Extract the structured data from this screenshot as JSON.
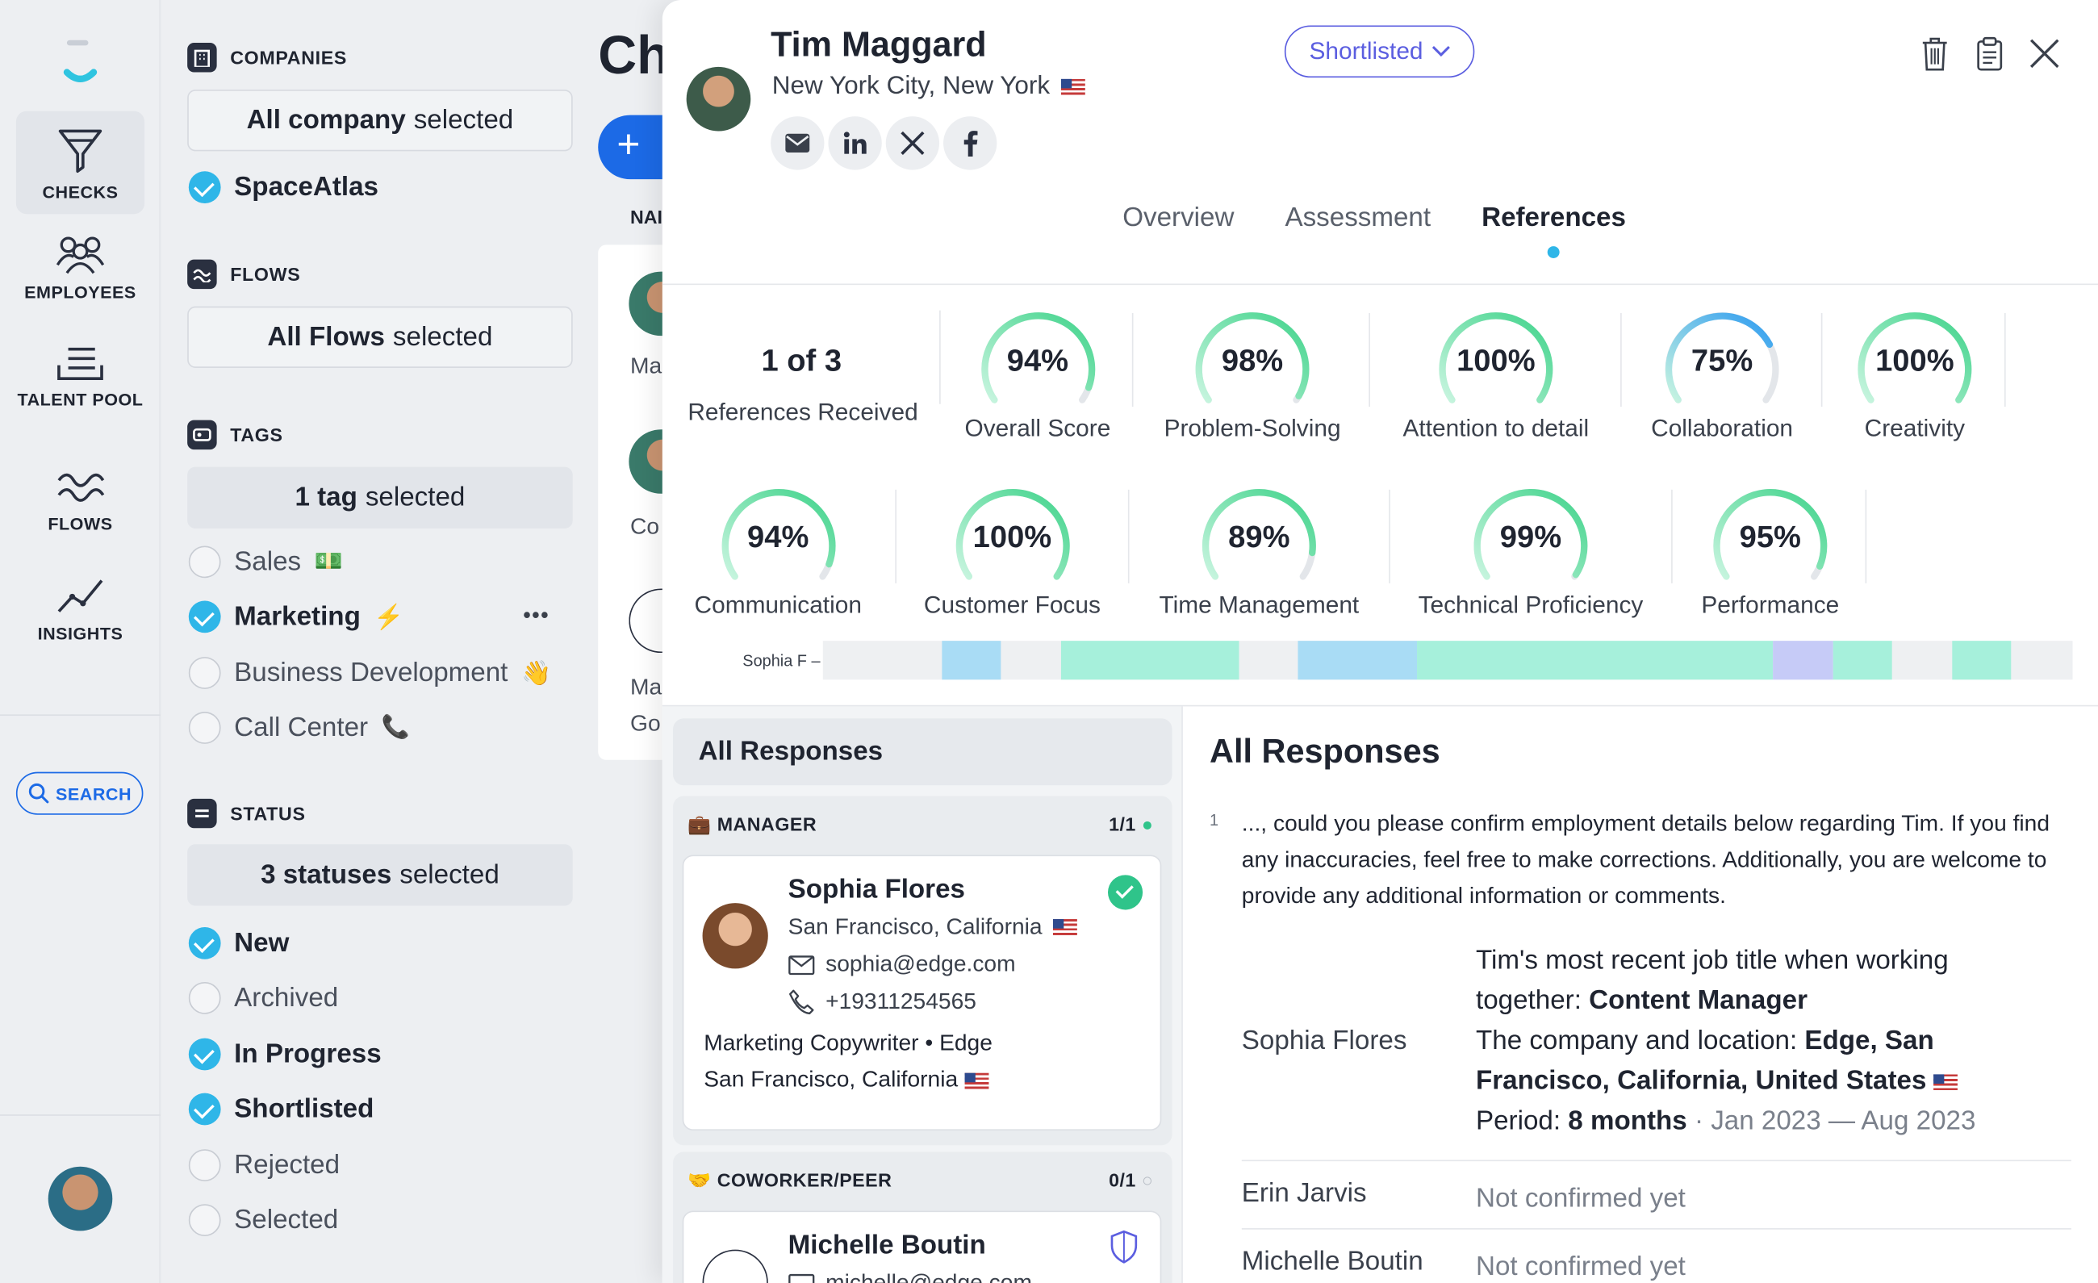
{
  "nav": {
    "items": [
      {
        "label": "CHECKS",
        "icon": "funnel-icon"
      },
      {
        "label": "EMPLOYEES",
        "icon": "people-icon"
      },
      {
        "label": "TALENT POOL",
        "icon": "inbox-list-icon"
      },
      {
        "label": "FLOWS",
        "icon": "waves-icon"
      },
      {
        "label": "INSIGHTS",
        "icon": "trend-icon"
      }
    ],
    "search_label": "SEARCH"
  },
  "filters": {
    "companies": {
      "title": "COMPANIES",
      "box_bold": "All company",
      "box_rest": "selected",
      "items": [
        "SpaceAtlas"
      ]
    },
    "flows": {
      "title": "FLOWS",
      "box_bold": "All Flows",
      "box_rest": "selected"
    },
    "tags": {
      "title": "TAGS",
      "box_bold": "1 tag",
      "box_rest": "selected",
      "items": [
        {
          "label": "Sales",
          "emoji": "💵",
          "checked": false
        },
        {
          "label": "Marketing",
          "emoji": "⚡",
          "checked": true
        },
        {
          "label": "Business Development",
          "emoji": "👋",
          "checked": false
        },
        {
          "label": "Call Center",
          "emoji": "📞",
          "checked": false
        }
      ],
      "more": "•••"
    },
    "status": {
      "title": "STATUS",
      "box_bold": "3 statuses",
      "box_rest": "selected",
      "items": [
        {
          "label": "New",
          "checked": true
        },
        {
          "label": "Archived",
          "checked": false
        },
        {
          "label": "In Progress",
          "checked": true
        },
        {
          "label": "Shortlisted",
          "checked": true
        },
        {
          "label": "Rejected",
          "checked": false
        },
        {
          "label": "Selected",
          "checked": false
        }
      ]
    }
  },
  "background": {
    "title": "Ch",
    "plus": "+",
    "col_header": "NAI",
    "rows": [
      "Ma",
      "Co",
      "Ma",
      "Go"
    ]
  },
  "candidate": {
    "name": "Tim Maggard",
    "location": "New York City, New York",
    "status": "Shortlisted",
    "tabs": [
      "Overview",
      "Assessment",
      "References"
    ],
    "active_tab": "References"
  },
  "references": {
    "count": "1 of 3",
    "count_label": "References Received",
    "row1": [
      {
        "value": "94%",
        "label": "Overall Score",
        "pct": 94,
        "color": "#3fd38a"
      },
      {
        "value": "98%",
        "label": "Problem-Solving",
        "pct": 98,
        "color": "#3fd38a"
      },
      {
        "value": "100%",
        "label": "Attention to detail",
        "pct": 100,
        "color": "#3fd38a"
      },
      {
        "value": "75%",
        "label": "Collaboration",
        "pct": 75,
        "color": "#2f9cf0"
      },
      {
        "value": "100%",
        "label": "Creativity",
        "pct": 100,
        "color": "#3fd38a"
      }
    ],
    "row2": [
      {
        "value": "94%",
        "label": "Communication",
        "pct": 94,
        "color": "#3fd38a"
      },
      {
        "value": "100%",
        "label": "Customer Focus",
        "pct": 100,
        "color": "#3fd38a"
      },
      {
        "value": "89%",
        "label": "Time Management",
        "pct": 89,
        "color": "#3fd38a"
      },
      {
        "value": "99%",
        "label": "Technical Proficiency",
        "pct": 99,
        "color": "#3fd38a"
      },
      {
        "value": "95%",
        "label": "Performance",
        "pct": 95,
        "color": "#3fd38a"
      }
    ],
    "timeline_label": "Sophia F"
  },
  "responses": {
    "sidebar_title": "All Responses",
    "manager": {
      "title": "MANAGER",
      "count": "1/1",
      "name": "Sophia Flores",
      "location": "San Francisco, California",
      "email": "sophia@edge.com",
      "phone": "+19311254565",
      "role": "Marketing Copywriter",
      "company": "Edge",
      "company_location": "San Francisco, California"
    },
    "peer": {
      "title": "COWORKER/PEER",
      "count": "0/1",
      "name": "Michelle Boutin",
      "email": "michelle@edge.com"
    },
    "main_title": "All Responses",
    "question_num": "1",
    "question": "..., could you please confirm employment details below regarding Tim. If you find any inaccuracies, feel free to make corrections. Additionally, you are welcome to provide any additional information or comments.",
    "answers": [
      {
        "who": "Sophia Flores",
        "l1a": "Tim's most recent job title when working together: ",
        "l1b": "Content Manager",
        "l2a": "The company and location: ",
        "l2b": "Edge, San Francisco, California, United States",
        "l3a": "Period: ",
        "l3b": "8 months",
        "l3c": " · Jan 2023 — Aug 2023"
      },
      {
        "who": "Erin Jarvis",
        "pending": "Not confirmed yet"
      },
      {
        "who": "Michelle Boutin",
        "pending": "Not confirmed yet"
      }
    ]
  }
}
